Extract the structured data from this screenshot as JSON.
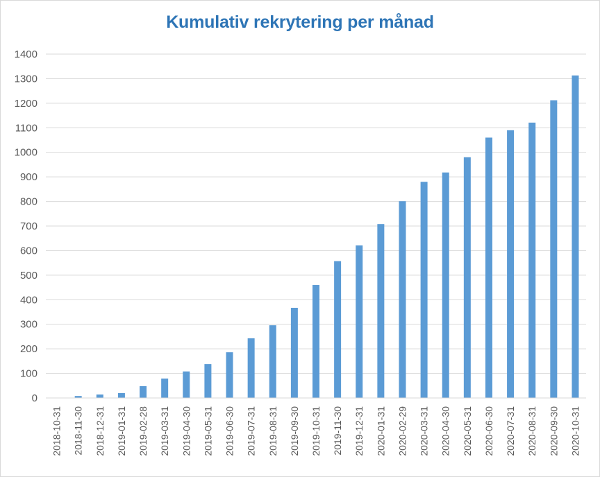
{
  "chart_data": {
    "type": "bar",
    "title": "Kumulativ rekrytering per månad",
    "xlabel": "",
    "ylabel": "",
    "ylim": [
      0,
      1400
    ],
    "yticks": [
      0,
      100,
      200,
      300,
      400,
      500,
      600,
      700,
      800,
      900,
      1000,
      1100,
      1200,
      1300,
      1400
    ],
    "grid": true,
    "legend": "none",
    "bar_color": "#5b9bd5",
    "title_color": "#2e75b6",
    "categories": [
      "2018-10-31",
      "2018-11-30",
      "2018-12-31",
      "2019-01-31",
      "2019-02-28",
      "2019-03-31",
      "2019-04-30",
      "2019-05-31",
      "2019-06-30",
      "2019-07-31",
      "2019-08-31",
      "2019-09-30",
      "2019-10-31",
      "2019-11-30",
      "2019-12-31",
      "2020-01-31",
      "2020-02-29",
      "2020-03-31",
      "2020-04-30",
      "2020-05-31",
      "2020-06-30",
      "2020-07-31",
      "2020-08-31",
      "2020-09-30",
      "2020-10-31"
    ],
    "values": [
      0,
      8,
      14,
      20,
      48,
      79,
      108,
      138,
      186,
      243,
      296,
      367,
      460,
      557,
      621,
      708,
      801,
      880,
      918,
      980,
      1060,
      1090,
      1121,
      1212,
      1313
    ]
  }
}
